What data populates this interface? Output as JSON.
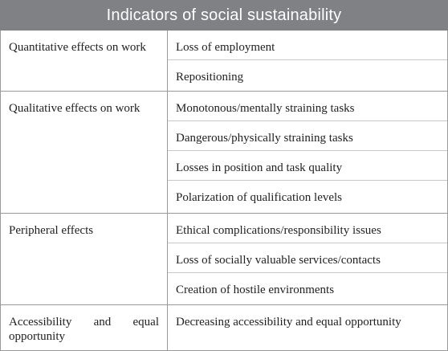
{
  "table": {
    "title": "Indicators of social sustainability",
    "groups": [
      {
        "category": "Quantitative effects on work",
        "items": [
          "Loss of employment",
          "Repositioning"
        ]
      },
      {
        "category": "Qualitative effects on work",
        "items": [
          "Monotonous/mentally straining tasks",
          "Dangerous/physically straining tasks",
          "Losses in position and task quality",
          "Polarization of qualification levels"
        ]
      },
      {
        "category": "Peripheral effects",
        "items": [
          "Ethical complications/responsibility issues",
          "Loss of socially valuable services/contacts",
          "Creation of hostile environments"
        ]
      },
      {
        "category": "Accessibility and equal opportunity",
        "items": [
          "Decreasing accessibility and equal opportunity"
        ]
      }
    ]
  },
  "colors": {
    "header_background": "#7f8184",
    "header_text": "#ffffff",
    "border": "#9a9a9a",
    "row_divider": "#c8c8c8",
    "text": "#222222"
  }
}
